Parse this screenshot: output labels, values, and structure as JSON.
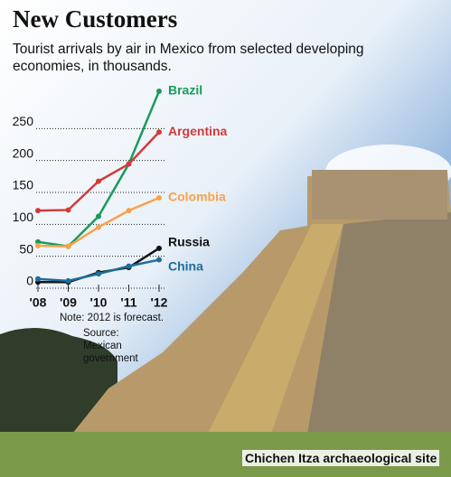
{
  "title": "New Customers",
  "subtitle": "Tourist arrivals by air in Mexico from selected developing economies, in thousands.",
  "note": "Note: 2012 is forecast.",
  "source": "Source: Mexican government",
  "caption": "Chichen Itza archaeological site",
  "chart_data": {
    "type": "line",
    "categories": [
      "'08",
      "'09",
      "'10",
      "'11",
      "'12"
    ],
    "series": [
      {
        "name": "Brazil",
        "color": "#1a9a5a",
        "values": [
          64,
          57,
          104,
          186,
          300
        ]
      },
      {
        "name": "Argentina",
        "color": "#d23a3a",
        "values": [
          113,
          114,
          159,
          186,
          236
        ]
      },
      {
        "name": "Colombia",
        "color": "#f7a24a",
        "values": [
          58,
          57,
          87,
          113,
          133
        ]
      },
      {
        "name": "Russia",
        "color": "#111111",
        "values": [
          1,
          1,
          16,
          24,
          54
        ]
      },
      {
        "name": "China",
        "color": "#1d6e9a",
        "values": [
          6,
          3,
          14,
          26,
          36
        ]
      }
    ],
    "ylim": [
      0,
      300
    ],
    "yticks": [
      0,
      50,
      100,
      150,
      200,
      250
    ],
    "grid": true
  }
}
